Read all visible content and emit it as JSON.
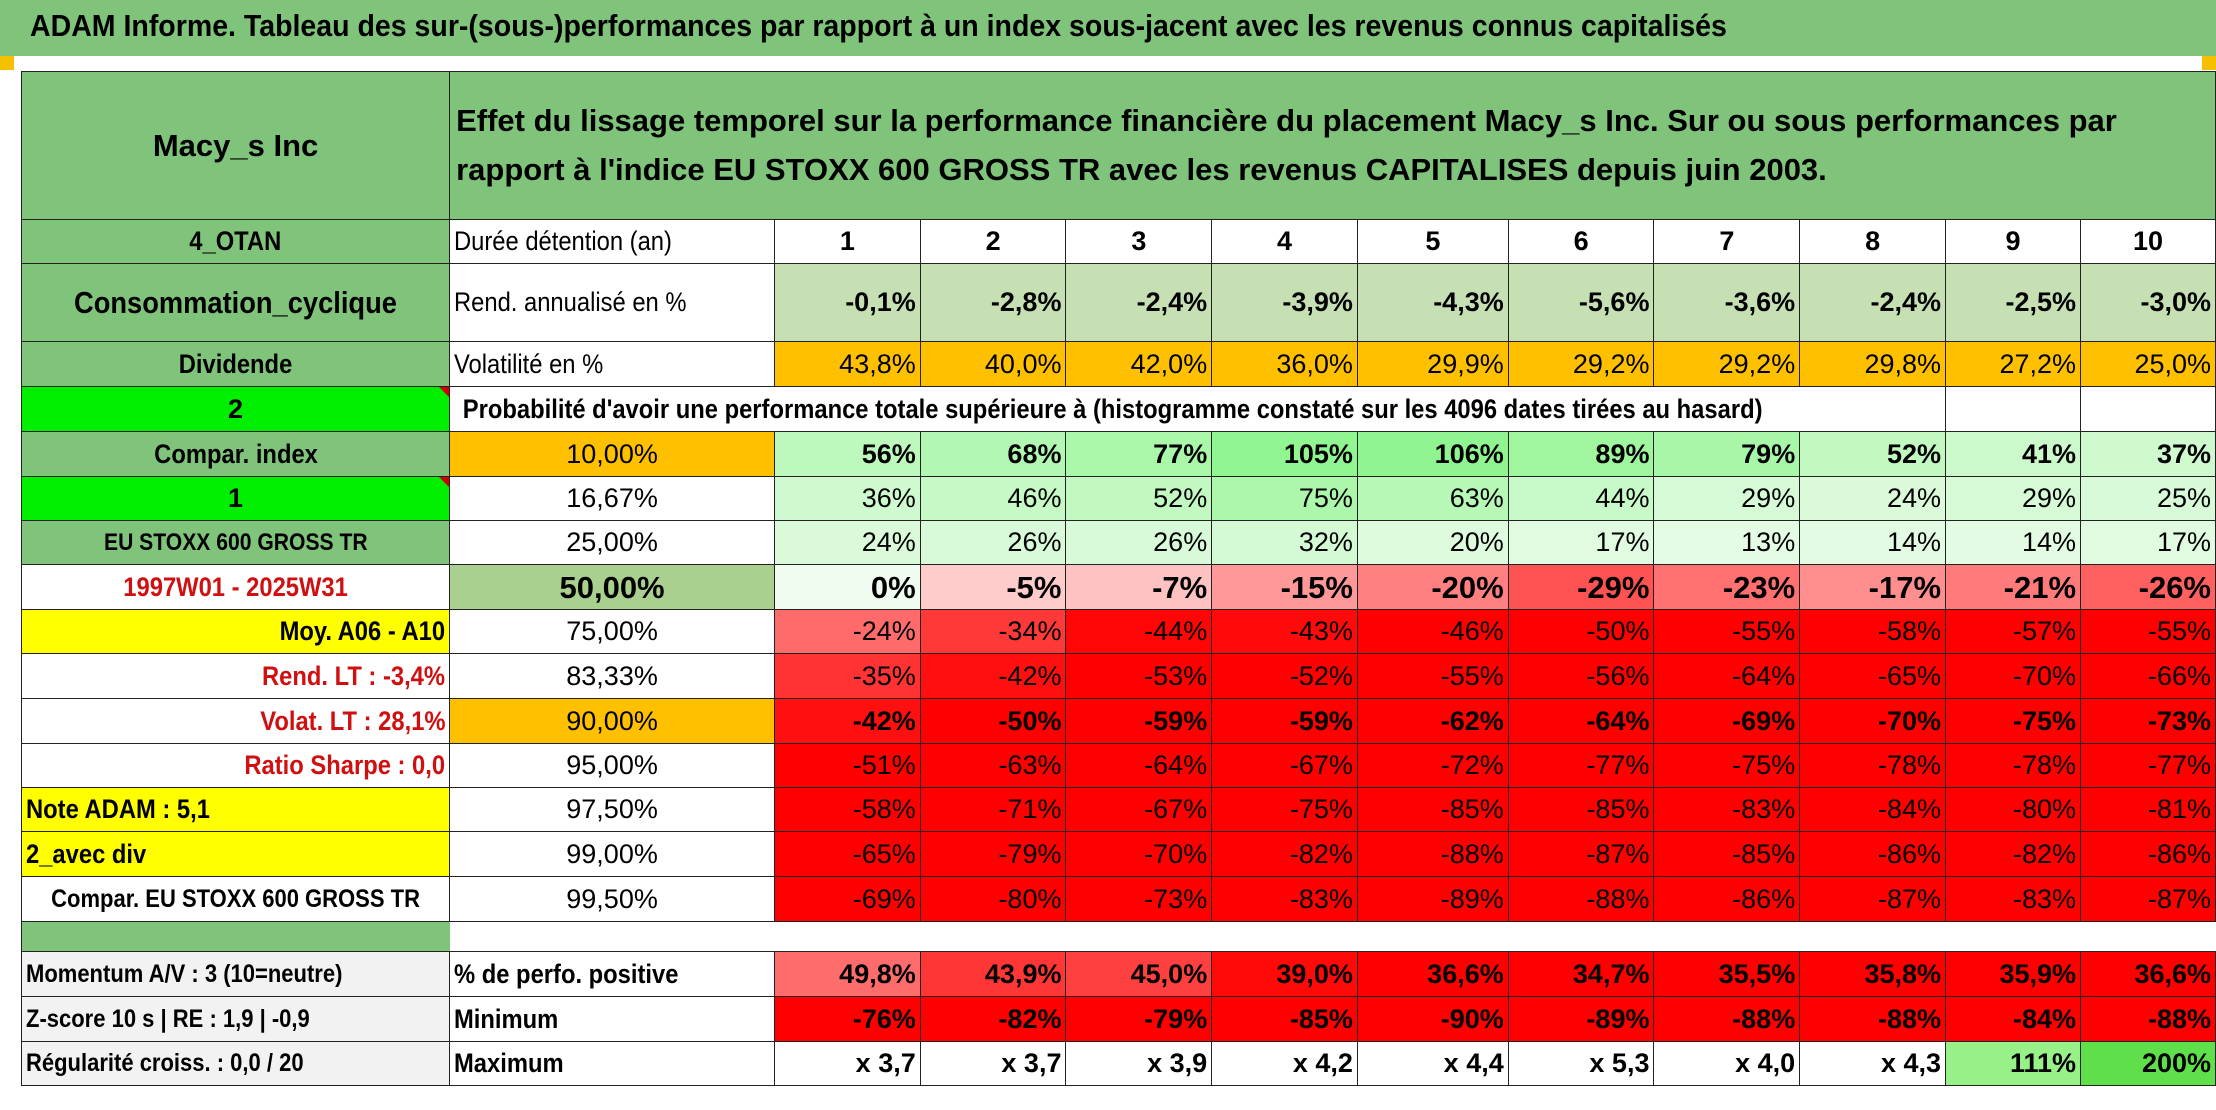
{
  "header": {
    "title": "ADAM Informe. Tableau des sur-(sous-)performances par rapport à un index sous-jacent avec les revenus connus capitalisés"
  },
  "left": {
    "company": "Macy_s Inc",
    "code": "4_OTAN",
    "sector": "Consommation_cyclique",
    "dividend_label": "Dividende",
    "selector_value": "2",
    "compar_index_label": "Compar. index",
    "selector_value_2": "1",
    "index_name": "EU STOXX 600 GROSS TR",
    "period": "1997W01 - 2025W31",
    "moy": "Moy. A06 - A10",
    "rend_lt": "Rend. LT :    -3,4%",
    "volat_lt": "Volat. LT :    28,1%",
    "sharpe": "Ratio Sharpe :    0,0",
    "note": "Note ADAM : 5,1",
    "avec_div": "2_avec div",
    "compar_full": "Compar. EU STOXX 600 GROSS TR",
    "momentum": "Momentum A/V : 3 (10=neutre)",
    "zscore": "Z-score 10 s | RE : 1,9 | -0,9",
    "regularite": "Régularité croiss. : 0,0 / 20"
  },
  "description": "Effet du lissage temporel sur la performance financière du placement Macy_s Inc. Sur ou sous performances par rapport à l'indice EU STOXX 600 GROSS TR avec les revenus CAPITALISES depuis juin 2003.",
  "stats": {
    "duration_label": "Durée détention (an)",
    "years": [
      "1",
      "2",
      "3",
      "4",
      "5",
      "6",
      "7",
      "8",
      "9",
      "10"
    ],
    "rend_label": "Rend. annualisé en %",
    "rend": [
      "-0,1%",
      "-2,8%",
      "-2,4%",
      "-3,9%",
      "-4,3%",
      "-5,6%",
      "-3,6%",
      "-2,4%",
      "-2,5%",
      "-3,0%"
    ],
    "vol_label": "Volatilité en %",
    "vol": [
      "43,8%",
      "40,0%",
      "42,0%",
      "36,0%",
      "29,9%",
      "29,2%",
      "29,2%",
      "29,8%",
      "27,2%",
      "25,0%"
    ]
  },
  "probability_title": "Probabilité d'avoir une performance totale supérieure à (histogramme constaté sur les 4096 dates tirées au hasard)",
  "prob_rows": [
    {
      "p": "10,00%",
      "v": [
        "56%",
        "68%",
        "77%",
        "105%",
        "106%",
        "89%",
        "79%",
        "52%",
        "41%",
        "37%"
      ]
    },
    {
      "p": "16,67%",
      "v": [
        "36%",
        "46%",
        "52%",
        "75%",
        "63%",
        "44%",
        "29%",
        "24%",
        "29%",
        "25%"
      ]
    },
    {
      "p": "25,00%",
      "v": [
        "24%",
        "26%",
        "26%",
        "32%",
        "20%",
        "17%",
        "13%",
        "14%",
        "14%",
        "17%"
      ]
    },
    {
      "p": "50,00%",
      "v": [
        "0%",
        "-5%",
        "-7%",
        "-15%",
        "-20%",
        "-29%",
        "-23%",
        "-17%",
        "-21%",
        "-26%"
      ]
    },
    {
      "p": "75,00%",
      "v": [
        "-24%",
        "-34%",
        "-44%",
        "-43%",
        "-46%",
        "-50%",
        "-55%",
        "-58%",
        "-57%",
        "-55%"
      ]
    },
    {
      "p": "83,33%",
      "v": [
        "-35%",
        "-42%",
        "-53%",
        "-52%",
        "-55%",
        "-56%",
        "-64%",
        "-65%",
        "-70%",
        "-66%"
      ]
    },
    {
      "p": "90,00%",
      "v": [
        "-42%",
        "-50%",
        "-59%",
        "-59%",
        "-62%",
        "-64%",
        "-69%",
        "-70%",
        "-75%",
        "-73%"
      ]
    },
    {
      "p": "95,00%",
      "v": [
        "-51%",
        "-63%",
        "-64%",
        "-67%",
        "-72%",
        "-77%",
        "-75%",
        "-78%",
        "-78%",
        "-77%"
      ]
    },
    {
      "p": "97,50%",
      "v": [
        "-58%",
        "-71%",
        "-67%",
        "-75%",
        "-85%",
        "-85%",
        "-83%",
        "-84%",
        "-80%",
        "-81%"
      ]
    },
    {
      "p": "99,00%",
      "v": [
        "-65%",
        "-79%",
        "-70%",
        "-82%",
        "-88%",
        "-87%",
        "-85%",
        "-86%",
        "-82%",
        "-86%"
      ]
    },
    {
      "p": "99,50%",
      "v": [
        "-69%",
        "-80%",
        "-73%",
        "-83%",
        "-89%",
        "-88%",
        "-86%",
        "-87%",
        "-83%",
        "-87%"
      ]
    }
  ],
  "bottom": {
    "pos_label": "% de perfo. positive",
    "pos": [
      "49,8%",
      "43,9%",
      "45,0%",
      "39,0%",
      "36,6%",
      "34,7%",
      "35,5%",
      "35,8%",
      "35,9%",
      "36,6%"
    ],
    "min_label": "Minimum",
    "min": [
      "-76%",
      "-82%",
      "-79%",
      "-85%",
      "-90%",
      "-89%",
      "-88%",
      "-88%",
      "-84%",
      "-88%"
    ],
    "max_label": "Maximum",
    "max": [
      "x 3,7",
      "x 3,7",
      "x 3,9",
      "x 4,2",
      "x 4,4",
      "x 5,3",
      "x 4,0",
      "x 4,3",
      "111%",
      "200%"
    ]
  },
  "colors": {
    "header_green": "#80c47c",
    "light_green": "#c6e0b4",
    "orange": "#ffc000",
    "bright_green": "#00ee00",
    "yellow": "#ffff00",
    "red": "#ff0000",
    "red_text": "#d01010"
  }
}
